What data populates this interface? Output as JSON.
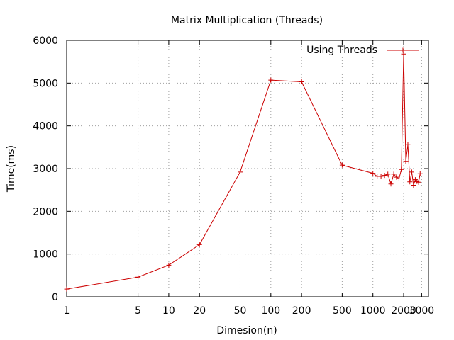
{
  "chart_data": {
    "type": "line",
    "title": "Matrix Multiplication (Threads)",
    "xlabel": "Dimesion(n)",
    "ylabel": "Time(ms)",
    "x_scale": "log",
    "xlim": [
      1,
      3500
    ],
    "ylim": [
      0,
      6000
    ],
    "x_ticks": [
      1,
      5,
      10,
      20,
      50,
      100,
      200,
      500,
      1000,
      2000,
      3000
    ],
    "x_tick_labels": [
      "1",
      "5",
      "10",
      "20",
      "50",
      "100",
      "200",
      "500",
      "1000",
      "2000",
      "3000"
    ],
    "y_ticks": [
      0,
      1000,
      2000,
      3000,
      4000,
      5000,
      6000
    ],
    "y_tick_labels": [
      "0",
      "1000",
      "2000",
      "3000",
      "4000",
      "5000",
      "6000"
    ],
    "grid": true,
    "legend_position": "top-right",
    "series": [
      {
        "name": "Using Threads",
        "color": "#cc0000",
        "points": [
          [
            1,
            180
          ],
          [
            5,
            460
          ],
          [
            10,
            740
          ],
          [
            20,
            1220
          ],
          [
            50,
            2920
          ],
          [
            100,
            5070
          ],
          [
            200,
            5030
          ],
          [
            500,
            3080
          ],
          [
            1000,
            2890
          ],
          [
            1100,
            2820
          ],
          [
            1200,
            2820
          ],
          [
            1300,
            2840
          ],
          [
            1400,
            2870
          ],
          [
            1500,
            2640
          ],
          [
            1600,
            2870
          ],
          [
            1700,
            2800
          ],
          [
            1800,
            2760
          ],
          [
            1900,
            2980
          ],
          [
            2000,
            5680
          ],
          [
            2100,
            3170
          ],
          [
            2200,
            3560
          ],
          [
            2300,
            2690
          ],
          [
            2400,
            2920
          ],
          [
            2500,
            2610
          ],
          [
            2600,
            2740
          ],
          [
            2700,
            2700
          ],
          [
            2800,
            2680
          ],
          [
            2900,
            2880
          ]
        ]
      }
    ]
  }
}
